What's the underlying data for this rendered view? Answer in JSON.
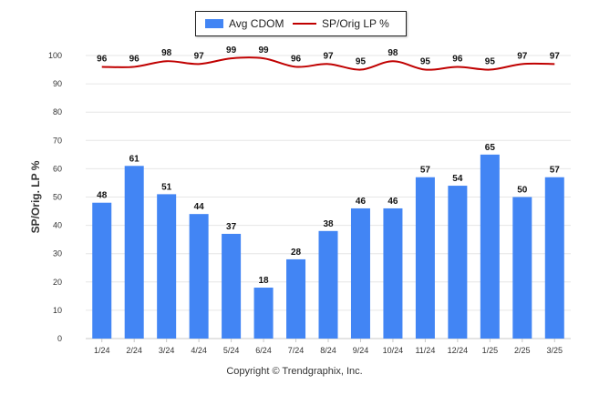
{
  "legend": {
    "bar_label": "Avg CDOM",
    "line_label": "SP/Orig LP %"
  },
  "copyright": "Copyright © Trendgraphix, Inc.",
  "colors": {
    "bar": "#4285f4",
    "line": "#c00000",
    "grid": "#e6e6e6"
  },
  "chart_data": {
    "type": "bar",
    "categories": [
      "1/24",
      "2/24",
      "3/24",
      "4/24",
      "5/24",
      "6/24",
      "7/24",
      "8/24",
      "9/24",
      "10/24",
      "11/24",
      "12/24",
      "1/25",
      "2/25",
      "3/25"
    ],
    "series": [
      {
        "name": "Avg CDOM",
        "type": "bar",
        "values": [
          48,
          61,
          51,
          44,
          37,
          18,
          28,
          38,
          46,
          46,
          57,
          54,
          65,
          50,
          57
        ]
      },
      {
        "name": "SP/Orig LP %",
        "type": "line",
        "values": [
          96,
          96,
          98,
          97,
          99,
          99,
          96,
          97,
          95,
          98,
          95,
          96,
          95,
          97,
          97
        ]
      }
    ],
    "ylabel": "SP/Orig. LP %",
    "ylim": [
      0,
      100
    ],
    "yticks": [
      0,
      10,
      20,
      30,
      40,
      50,
      60,
      70,
      80,
      90,
      100
    ],
    "grid": true,
    "legend_position": "top-center"
  }
}
